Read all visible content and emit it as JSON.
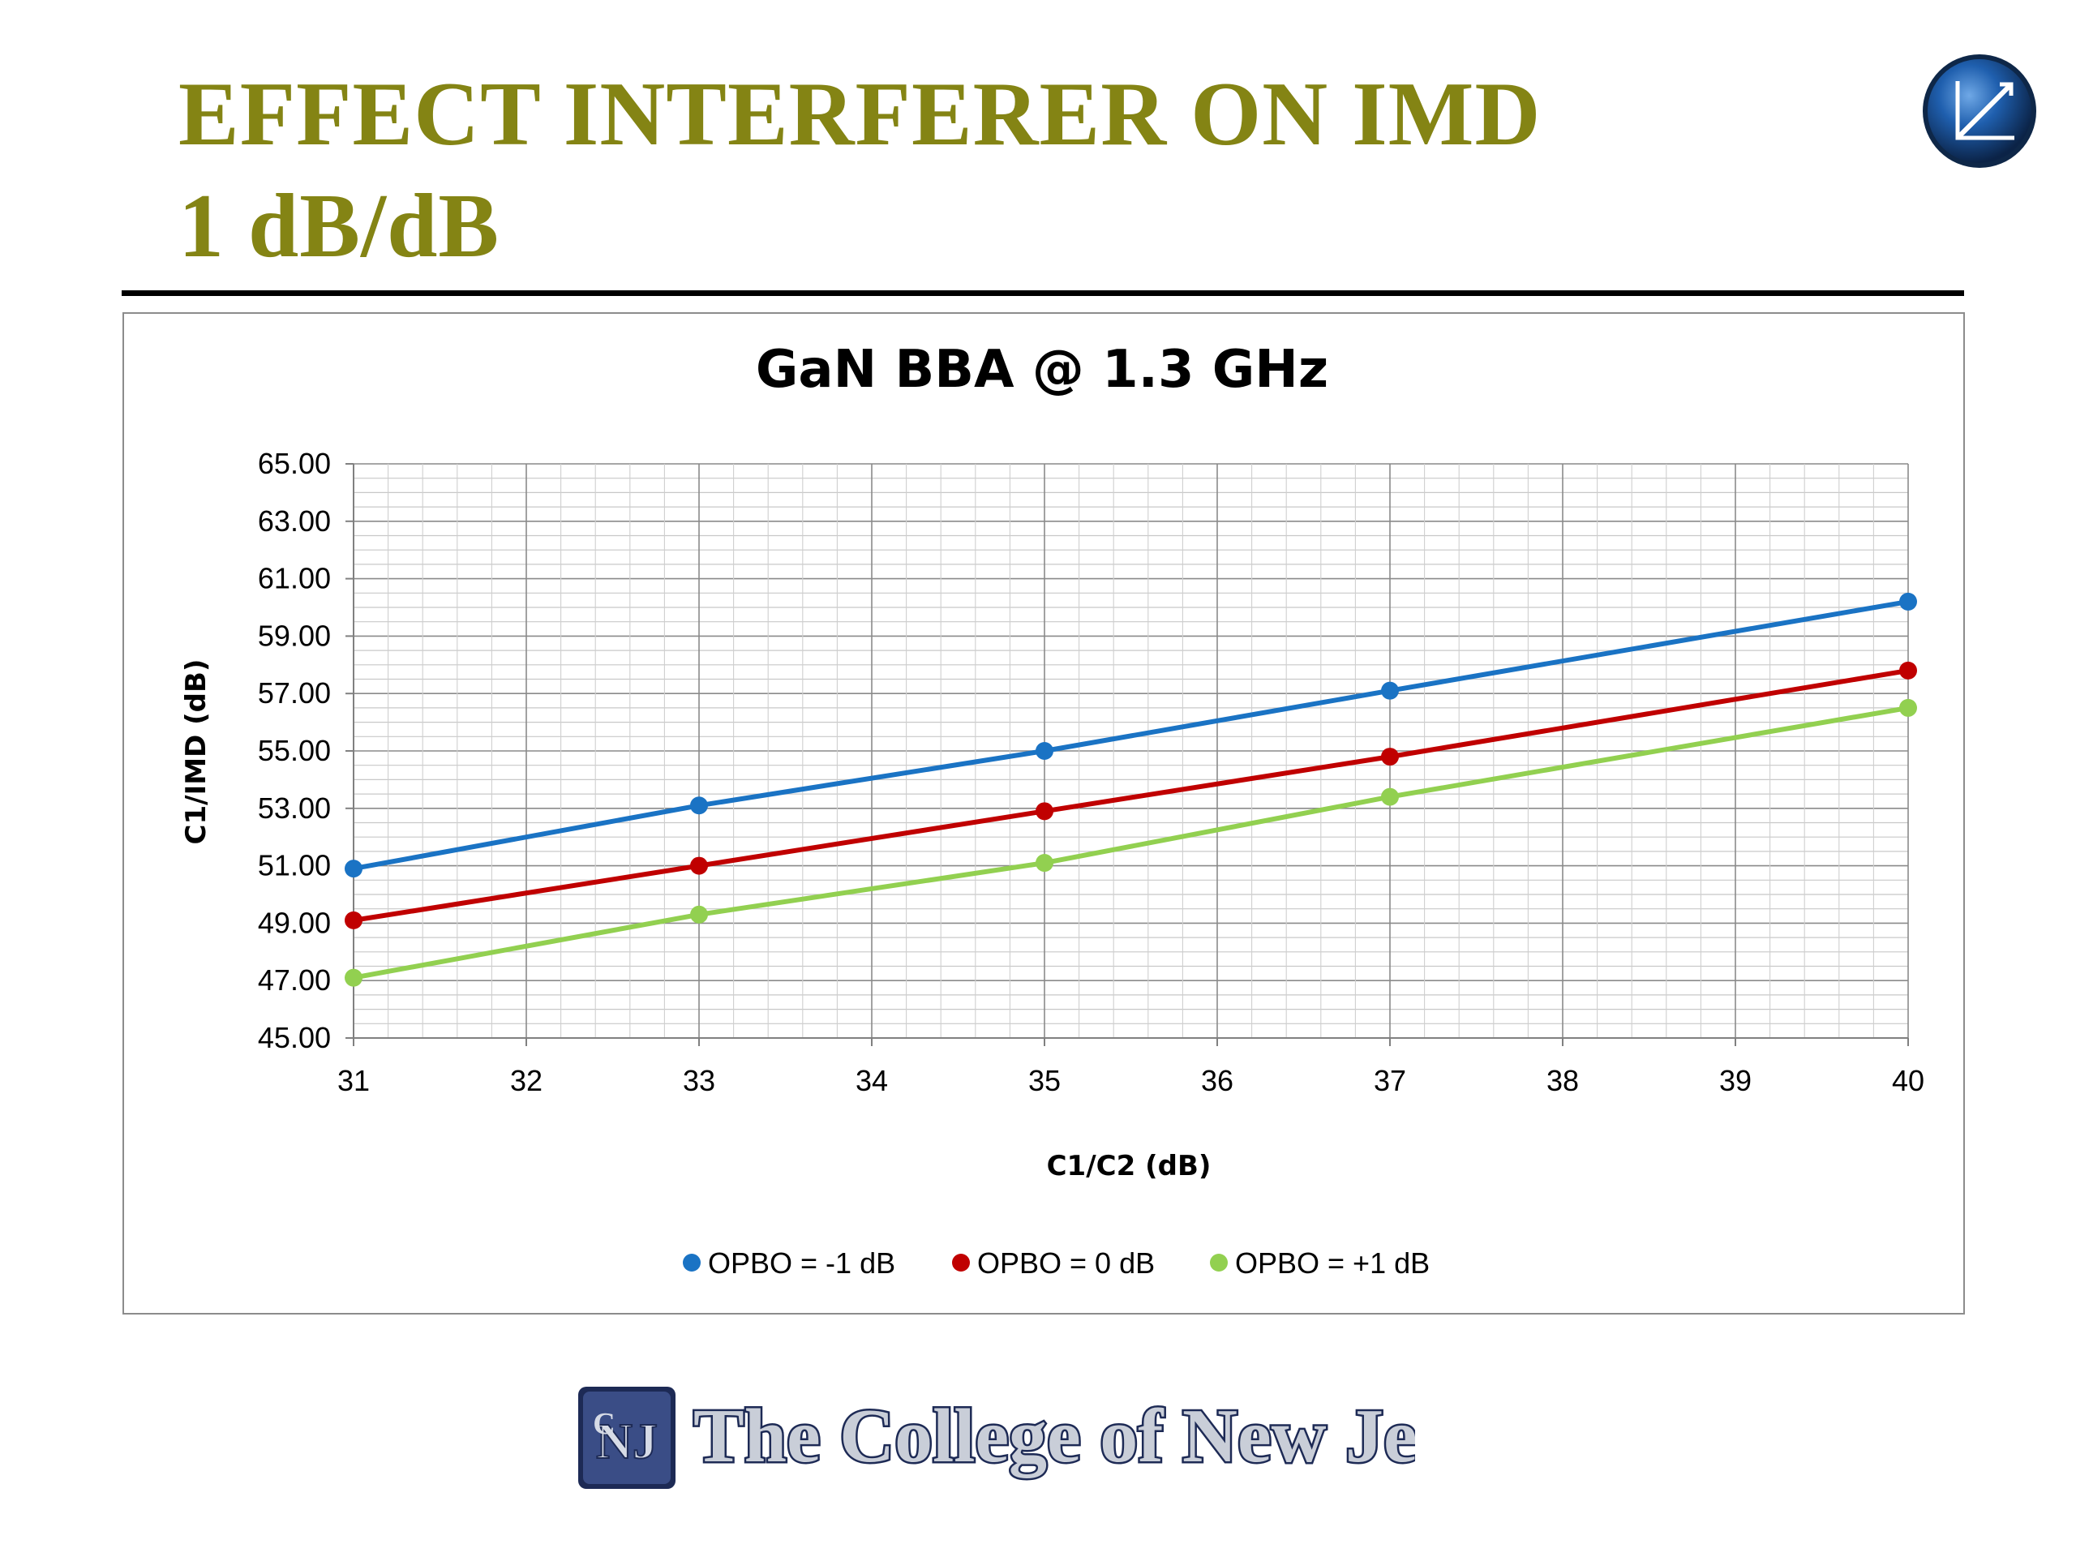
{
  "slide": {
    "title_line1": "EFFECT INTERFERER ON IMD",
    "title_line2": "1 dB/dB",
    "title_color": "#848414",
    "corner_logo_icon": "graph-globe-icon"
  },
  "chart_data": {
    "type": "line",
    "title": "GaN BBA @ 1.3 GHz",
    "xlabel": "C1/C2 (dB)",
    "ylabel": "C1/IMD (dB)",
    "xlim": [
      31,
      40
    ],
    "ylim": [
      45,
      65
    ],
    "x_ticks": [
      "31",
      "32",
      "33",
      "34",
      "35",
      "36",
      "37",
      "38",
      "39",
      "40"
    ],
    "y_ticks": [
      "65.00",
      "63.00",
      "61.00",
      "59.00",
      "57.00",
      "55.00",
      "53.00",
      "51.00",
      "49.00",
      "47.00",
      "45.00"
    ],
    "grid": true,
    "legend_position": "bottom",
    "x": [
      31,
      33,
      35,
      37,
      40
    ],
    "series": [
      {
        "name": "OPBO = -1 dB",
        "color": "#1a73c4",
        "values": [
          50.9,
          53.1,
          55.0,
          57.1,
          60.2
        ]
      },
      {
        "name": "OPBO = 0 dB",
        "color": "#c00000",
        "values": [
          49.1,
          51.0,
          52.9,
          54.8,
          57.8
        ]
      },
      {
        "name": "OPBO = +1 dB",
        "color": "#92d050",
        "values": [
          47.1,
          49.3,
          51.1,
          53.4,
          56.5
        ]
      }
    ]
  },
  "footer": {
    "college_name": "The College of New Jersey",
    "monogram": "TCNJ"
  }
}
